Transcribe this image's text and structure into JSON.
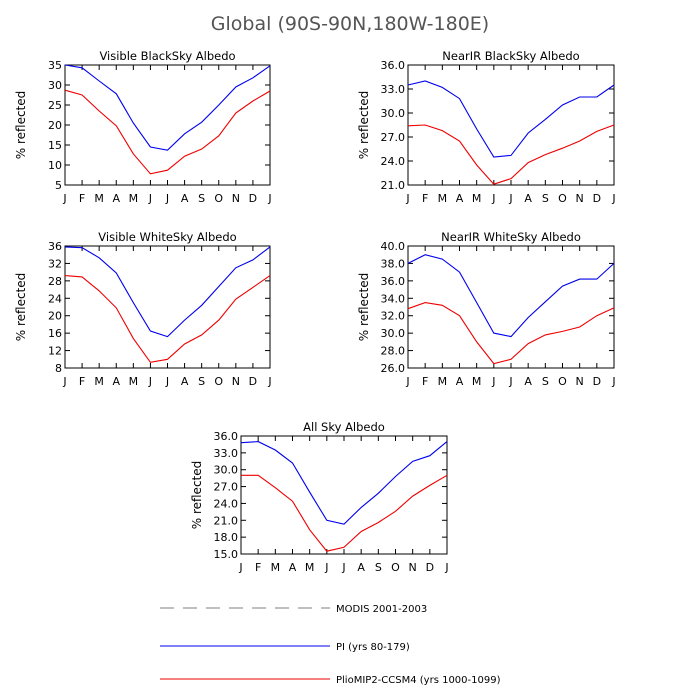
{
  "figure": {
    "title": "Global (90S-90N,180W-180E)"
  },
  "legend": [
    {
      "name": "MODIS 2001-2003",
      "color": "#aaaaaa",
      "dashed": true
    },
    {
      "name": "PI (yrs 80-179)",
      "color": "#0000ee",
      "dashed": false
    },
    {
      "name": "PlioMIP2-CCSM4 (yrs 1000-1099)",
      "color": "#ee0000",
      "dashed": false
    }
  ],
  "chart_data": [
    {
      "type": "line",
      "title": "Visible BlackSky Albedo",
      "ylabel": "% reflected",
      "categories": [
        "J",
        "F",
        "M",
        "A",
        "M",
        "J",
        "J",
        "A",
        "S",
        "O",
        "N",
        "D",
        "J"
      ],
      "ylim": [
        5,
        35
      ],
      "yticks": [
        "5",
        "10",
        "15",
        "20",
        "25",
        "30",
        "35"
      ],
      "series": [
        {
          "color": "#0000ee",
          "values": [
            35.0,
            34.3,
            31.0,
            27.8,
            20.5,
            14.5,
            13.7,
            17.8,
            20.7,
            25.0,
            29.5,
            31.8,
            34.8
          ]
        },
        {
          "color": "#ee0000",
          "values": [
            28.7,
            27.5,
            23.5,
            19.8,
            12.8,
            7.8,
            8.7,
            12.2,
            14.0,
            17.3,
            23.0,
            26.0,
            28.5
          ]
        }
      ]
    },
    {
      "type": "line",
      "title": "NearIR BlackSky Albedo",
      "ylabel": "% reflected",
      "categories": [
        "J",
        "F",
        "M",
        "A",
        "M",
        "J",
        "J",
        "A",
        "S",
        "O",
        "N",
        "D",
        "J"
      ],
      "ylim": [
        21,
        36
      ],
      "yticks": [
        "21.0",
        "24.0",
        "27.0",
        "30.0",
        "33.0",
        "36.0"
      ],
      "series": [
        {
          "color": "#0000ee",
          "values": [
            33.5,
            34.0,
            33.2,
            31.8,
            28.0,
            24.5,
            24.7,
            27.5,
            29.2,
            31.0,
            32.0,
            32.0,
            33.5
          ]
        },
        {
          "color": "#ee0000",
          "values": [
            28.4,
            28.5,
            27.8,
            26.5,
            23.5,
            21.1,
            21.8,
            23.8,
            24.8,
            25.6,
            26.5,
            27.7,
            28.5
          ]
        }
      ]
    },
    {
      "type": "line",
      "title": "Visible WhiteSky Albedo",
      "ylabel": "% reflected",
      "categories": [
        "J",
        "F",
        "M",
        "A",
        "M",
        "J",
        "J",
        "A",
        "S",
        "O",
        "N",
        "D",
        "J"
      ],
      "ylim": [
        8,
        36
      ],
      "yticks": [
        "8",
        "12",
        "16",
        "20",
        "24",
        "28",
        "32",
        "36"
      ],
      "series": [
        {
          "color": "#0000ee",
          "values": [
            35.8,
            35.6,
            33.3,
            29.8,
            23.0,
            16.5,
            15.2,
            19.0,
            22.4,
            26.7,
            31.0,
            32.8,
            35.8
          ]
        },
        {
          "color": "#ee0000",
          "values": [
            29.2,
            28.9,
            25.7,
            21.8,
            14.8,
            9.3,
            10.0,
            13.5,
            15.6,
            19.0,
            23.8,
            26.5,
            29.2
          ]
        }
      ]
    },
    {
      "type": "line",
      "title": "NearIR WhiteSky Albedo",
      "ylabel": "% reflected",
      "categories": [
        "J",
        "F",
        "M",
        "A",
        "M",
        "J",
        "J",
        "A",
        "S",
        "O",
        "N",
        "D",
        "J"
      ],
      "ylim": [
        26,
        40
      ],
      "yticks": [
        "26.0",
        "28.0",
        "30.0",
        "32.0",
        "34.0",
        "36.0",
        "38.0",
        "40.0"
      ],
      "series": [
        {
          "color": "#0000ee",
          "values": [
            38.0,
            39.0,
            38.5,
            37.0,
            33.5,
            30.0,
            29.6,
            31.8,
            33.6,
            35.4,
            36.2,
            36.2,
            38.0
          ]
        },
        {
          "color": "#ee0000",
          "values": [
            32.8,
            33.5,
            33.2,
            32.0,
            29.0,
            26.5,
            27.0,
            28.8,
            29.8,
            30.2,
            30.7,
            32.0,
            32.9
          ]
        }
      ]
    },
    {
      "type": "line",
      "title": "All Sky Albedo",
      "ylabel": "% reflected",
      "categories": [
        "J",
        "F",
        "M",
        "A",
        "M",
        "J",
        "J",
        "A",
        "S",
        "O",
        "N",
        "D",
        "J"
      ],
      "ylim": [
        15,
        36
      ],
      "yticks": [
        "15.0",
        "18.0",
        "21.0",
        "24.0",
        "27.0",
        "30.0",
        "33.0",
        "36.0"
      ],
      "series": [
        {
          "color": "#0000ee",
          "values": [
            34.8,
            35.0,
            33.5,
            31.2,
            26.0,
            21.0,
            20.3,
            23.3,
            25.8,
            28.8,
            31.5,
            32.5,
            35.0
          ]
        },
        {
          "color": "#ee0000",
          "values": [
            29.0,
            29.0,
            26.8,
            24.4,
            19.3,
            15.5,
            16.2,
            19.0,
            20.6,
            22.6,
            25.3,
            27.2,
            29.0
          ]
        }
      ]
    }
  ]
}
